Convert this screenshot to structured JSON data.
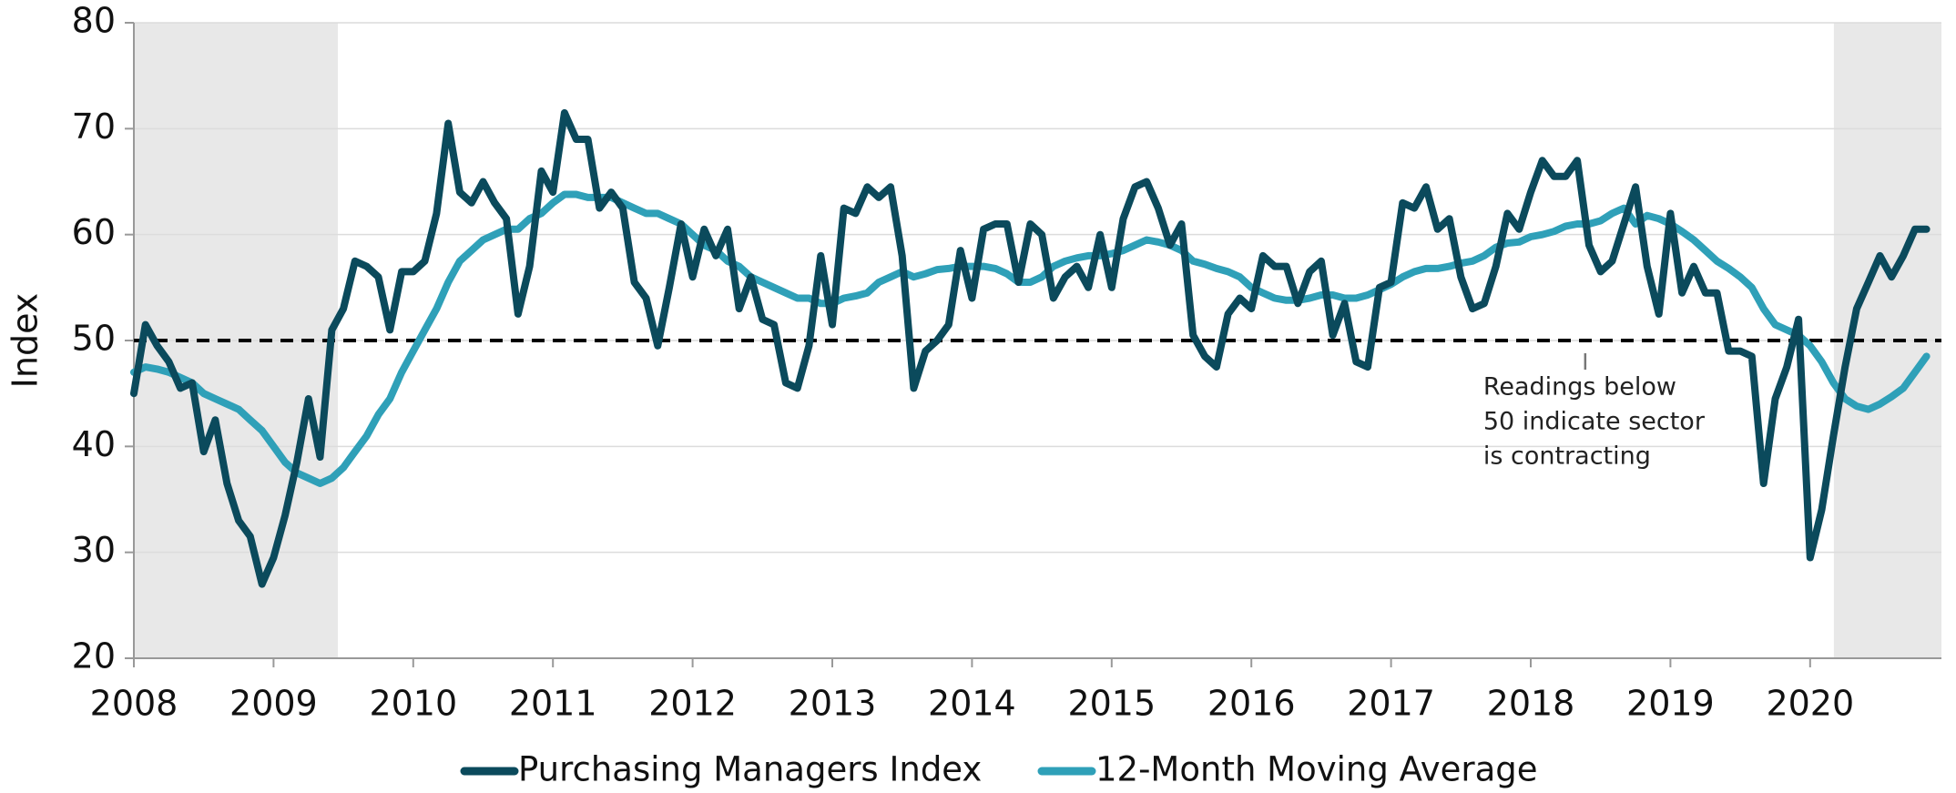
{
  "chart_data": {
    "type": "line",
    "y_label": "Index",
    "xlim": [
      2008,
      2020.94
    ],
    "xticks": [
      2008,
      2009,
      2010,
      2011,
      2012,
      2013,
      2014,
      2015,
      2016,
      2017,
      2018,
      2019,
      2020
    ],
    "ylim": [
      20,
      80
    ],
    "yticks": [
      20,
      30,
      40,
      50,
      60,
      70,
      80
    ],
    "grid": true,
    "reference_line": 50,
    "recessions": [
      {
        "start": 2008,
        "end": 2009.46
      },
      {
        "start": 2020.17,
        "end": 2020.94
      }
    ],
    "annotation": {
      "x": 2018.39,
      "lines": [
        "Readings below",
        "50 indicate sector",
        "is contracting"
      ]
    },
    "legend": "bottom",
    "x": [
      2008,
      2008.083,
      2008.167,
      2008.25,
      2008.333,
      2008.417,
      2008.5,
      2008.583,
      2008.667,
      2008.75,
      2008.833,
      2008.917,
      2009,
      2009.083,
      2009.167,
      2009.25,
      2009.333,
      2009.417,
      2009.5,
      2009.583,
      2009.667,
      2009.75,
      2009.833,
      2009.917,
      2010,
      2010.083,
      2010.167,
      2010.25,
      2010.333,
      2010.417,
      2010.5,
      2010.583,
      2010.667,
      2010.75,
      2010.833,
      2010.917,
      2011,
      2011.083,
      2011.167,
      2011.25,
      2011.333,
      2011.417,
      2011.5,
      2011.583,
      2011.667,
      2011.75,
      2011.833,
      2011.917,
      2012,
      2012.083,
      2012.167,
      2012.25,
      2012.333,
      2012.417,
      2012.5,
      2012.583,
      2012.667,
      2012.75,
      2012.833,
      2012.917,
      2013,
      2013.083,
      2013.167,
      2013.25,
      2013.333,
      2013.417,
      2013.5,
      2013.583,
      2013.667,
      2013.75,
      2013.833,
      2013.917,
      2014,
      2014.083,
      2014.167,
      2014.25,
      2014.333,
      2014.417,
      2014.5,
      2014.583,
      2014.667,
      2014.75,
      2014.833,
      2014.917,
      2015,
      2015.083,
      2015.167,
      2015.25,
      2015.333,
      2015.417,
      2015.5,
      2015.583,
      2015.667,
      2015.75,
      2015.833,
      2015.917,
      2016,
      2016.083,
      2016.167,
      2016.25,
      2016.333,
      2016.417,
      2016.5,
      2016.583,
      2016.667,
      2016.75,
      2016.833,
      2016.917,
      2017,
      2017.083,
      2017.167,
      2017.25,
      2017.333,
      2017.417,
      2017.5,
      2017.583,
      2017.667,
      2017.75,
      2017.833,
      2017.917,
      2018,
      2018.083,
      2018.167,
      2018.25,
      2018.333,
      2018.417,
      2018.5,
      2018.583,
      2018.667,
      2018.75,
      2018.833,
      2018.917,
      2019,
      2019.083,
      2019.167,
      2019.25,
      2019.333,
      2019.417,
      2019.5,
      2019.583,
      2019.667,
      2019.75,
      2019.833,
      2019.917,
      2020,
      2020.083,
      2020.167,
      2020.25,
      2020.333,
      2020.417,
      2020.5,
      2020.583,
      2020.667,
      2020.75,
      2020.833
    ],
    "series": [
      {
        "name": "Purchasing Managers Index",
        "color": "#0b4a5c",
        "values": [
          45,
          51.5,
          49.5,
          48,
          45.5,
          46,
          39.5,
          42.5,
          36.5,
          33,
          31.5,
          27,
          29.5,
          33.5,
          38.5,
          44.5,
          39,
          51,
          53,
          57.5,
          57,
          56,
          51,
          56.5,
          56.5,
          57.5,
          62,
          70.5,
          64,
          63,
          65,
          63,
          61.5,
          52.5,
          57,
          66,
          64,
          71.5,
          69,
          69,
          62.5,
          64,
          62.5,
          55.5,
          54,
          49.5,
          55,
          61,
          56,
          60.5,
          58,
          60.5,
          53,
          56,
          52,
          51.5,
          46,
          45.5,
          49.5,
          58,
          51.5,
          62.5,
          62,
          64.5,
          63.5,
          64.5,
          58,
          45.5,
          49,
          50,
          51.5,
          58.5,
          54,
          60.5,
          61,
          61,
          55.5,
          61,
          60,
          54,
          56,
          57,
          55,
          60,
          55,
          61.5,
          64.5,
          65,
          62.5,
          59,
          61,
          50.5,
          48.5,
          47.5,
          52.5,
          54,
          53,
          58,
          57,
          57,
          53.5,
          56.5,
          57.5,
          50.5,
          53.5,
          48,
          47.5,
          55,
          55.5,
          63,
          62.5,
          64.5,
          60.5,
          61.5,
          56,
          53,
          53.5,
          57,
          62,
          60.5,
          64,
          67,
          65.5,
          65.5,
          67,
          59,
          56.5,
          57.5,
          61,
          64.5,
          57,
          52.5,
          62,
          54.5,
          57,
          54.5,
          54.5,
          49,
          49,
          48.5,
          36.5,
          44.5,
          47.5,
          52,
          29.5,
          34,
          41,
          47.5,
          53,
          55.5,
          58,
          56,
          58,
          60.5,
          60.5
        ]
      },
      {
        "name": "12-Month Moving Average",
        "color": "#2fa0b8",
        "values": [
          47,
          47.5,
          47.3,
          47,
          46.5,
          46,
          45,
          44.5,
          44,
          43.5,
          42.5,
          41.5,
          40,
          38.5,
          37.5,
          37,
          36.5,
          37,
          38,
          39.5,
          41,
          43,
          44.5,
          47,
          49,
          51,
          53,
          55.5,
          57.5,
          58.5,
          59.5,
          60,
          60.5,
          60.5,
          61.5,
          62,
          63,
          63.8,
          63.8,
          63.5,
          63.5,
          63.5,
          63,
          62.5,
          62,
          62,
          61.5,
          61,
          60,
          59,
          58.5,
          57.5,
          57,
          56,
          55.5,
          55,
          54.5,
          54,
          54,
          53.5,
          53.5,
          54,
          54.2,
          54.5,
          55.5,
          56,
          56.5,
          56,
          56.3,
          56.7,
          56.8,
          57,
          57,
          57,
          56.8,
          56.3,
          55.5,
          55.5,
          56,
          57,
          57.5,
          57.8,
          58,
          58,
          58.2,
          58.5,
          59,
          59.5,
          59.3,
          59,
          58.5,
          57.5,
          57.2,
          56.8,
          56.5,
          56,
          55,
          54.5,
          54,
          53.8,
          53.8,
          54,
          54.3,
          54.3,
          54,
          54,
          54.3,
          54.8,
          55.3,
          56,
          56.5,
          56.8,
          56.8,
          57,
          57.3,
          57.5,
          58,
          58.8,
          59.2,
          59.3,
          59.8,
          60,
          60.3,
          60.8,
          61,
          61,
          61.3,
          62,
          62.5,
          61,
          61.8,
          61.5,
          61,
          60.3,
          59.5,
          58.5,
          57.5,
          56.8,
          56,
          55,
          53,
          51.5,
          51,
          50.5,
          49.5,
          48,
          46,
          44.5,
          43.8,
          43.5,
          44,
          44.7,
          45.5,
          47,
          48.5
        ]
      }
    ]
  }
}
